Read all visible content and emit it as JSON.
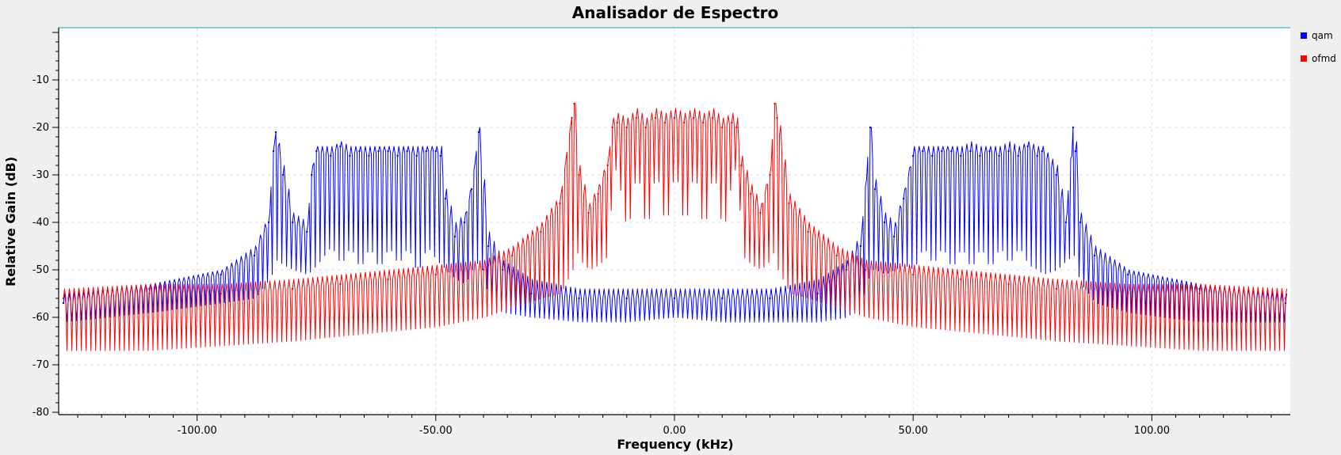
{
  "chart_data": {
    "type": "line",
    "title": "Analisador de Espectro",
    "xlabel": "Frequency (kHz)",
    "ylabel": "Relative Gain (dB)",
    "xlim": [
      -129,
      129
    ],
    "ylim": [
      -80.5,
      1
    ],
    "x_ticks": [
      -100,
      -50,
      0,
      50,
      100
    ],
    "x_tick_labels": [
      "-100.00",
      "-50.00",
      "0.00",
      "50.00",
      "100.00"
    ],
    "y_ticks": [
      -10,
      -20,
      -30,
      -40,
      -50,
      -60,
      -70,
      -80
    ],
    "y_tick_labels": [
      "-10",
      "-20",
      "-30",
      "-40",
      "-50",
      "-60",
      "-70",
      "-80"
    ],
    "grid": true,
    "legend_position": "right",
    "series": [
      {
        "name": "qam",
        "color": "#0000ff",
        "x": [
          -128,
          -110,
          -95,
          -88,
          -85,
          -84,
          -83.5,
          -82,
          -80,
          -77,
          -76,
          -75,
          -72,
          -70,
          -68,
          -66,
          -64,
          -62,
          -60,
          -58,
          -56,
          -54,
          -52,
          -50,
          -49,
          -48,
          -46,
          -44,
          -42.5,
          -41,
          -39,
          -36,
          -30,
          -20,
          -10,
          0,
          10,
          20,
          30,
          36,
          39,
          41,
          42,
          44,
          46,
          48,
          50,
          52,
          54,
          56,
          58,
          60,
          62,
          64,
          66,
          68,
          70,
          72,
          74,
          76,
          77,
          80,
          82,
          83.5,
          84,
          85,
          88,
          95,
          110,
          128
        ],
        "y": [
          -57,
          -54,
          -51,
          -47,
          -40,
          -25,
          -21,
          -30,
          -40,
          -42,
          -30,
          -25,
          -26,
          -24,
          -26,
          -25,
          -26,
          -25,
          -25,
          -26,
          -25,
          -26,
          -25,
          -25,
          -26,
          -35,
          -43,
          -40,
          -33,
          -21,
          -45,
          -50,
          -55,
          -56,
          -56,
          -56,
          -56,
          -56,
          -55,
          -50,
          -45,
          -20,
          -33,
          -40,
          -43,
          -35,
          -26,
          -25,
          -26,
          -25,
          -25,
          -26,
          -25,
          -26,
          -25,
          -26,
          -25,
          -26,
          -24,
          -26,
          -25,
          -30,
          -40,
          -20,
          -25,
          -40,
          -47,
          -51,
          -54,
          -57
        ],
        "upper_y": [
          -55,
          -53,
          -50,
          -45,
          -38,
          -23,
          -21,
          -28,
          -38,
          -40,
          -28,
          -24,
          -24,
          -23,
          -24,
          -24,
          -24,
          -24,
          -24,
          -24,
          -24,
          -24,
          -24,
          -24,
          -24,
          -33,
          -40,
          -38,
          -31,
          -20,
          -42,
          -48,
          -52,
          -54,
          -54,
          -54,
          -54,
          -54,
          -52,
          -48,
          -42,
          -20,
          -31,
          -38,
          -40,
          -33,
          -24,
          -24,
          -24,
          -24,
          -24,
          -24,
          -23,
          -24,
          -24,
          -24,
          -23,
          -24,
          -23,
          -24,
          -24,
          -28,
          -38,
          -20,
          -23,
          -38,
          -45,
          -50,
          -53,
          -55
        ],
        "lower_y": [
          -61,
          -59,
          -57,
          -56,
          -52,
          -50,
          -48,
          -49,
          -50,
          -51,
          -50,
          -49,
          -45,
          -49,
          -45,
          -50,
          -45,
          -50,
          -45,
          -49,
          -45,
          -51,
          -45,
          -48,
          -49,
          -50,
          -52,
          -53,
          -50,
          -48,
          -56,
          -59,
          -60,
          -61,
          -61,
          -60,
          -61,
          -61,
          -61,
          -60,
          -57,
          -50,
          -50,
          -51,
          -50,
          -49,
          -50,
          -45,
          -49,
          -45,
          -50,
          -45,
          -50,
          -45,
          -50,
          -45,
          -49,
          -45,
          -49,
          -50,
          -51,
          -50,
          -48,
          -47,
          -50,
          -53,
          -57,
          -59,
          -61,
          -61
        ]
      },
      {
        "name": "ofmd",
        "color": "#ff0000",
        "x": [
          -128,
          -110,
          -95,
          -80,
          -70,
          -60,
          -50,
          -40,
          -34,
          -28,
          -24,
          -21.5,
          -21,
          -20,
          -18,
          -16,
          -14,
          -13,
          -12,
          -10,
          -8,
          -6,
          -4,
          -2,
          0,
          2,
          4,
          6,
          8,
          10,
          12,
          13,
          14,
          16,
          18,
          20,
          21,
          21.5,
          24,
          28,
          34,
          40,
          50,
          60,
          70,
          80,
          95,
          110,
          128
        ],
        "y": [
          -56,
          -55,
          -55,
          -54,
          -53,
          -52,
          -51,
          -50,
          -47,
          -42,
          -36,
          -18,
          -15,
          -30,
          -38,
          -34,
          -28,
          -20,
          -19,
          -20,
          -18,
          -20,
          -18,
          -19,
          -18,
          -19,
          -18,
          -19,
          -18,
          -20,
          -19,
          -20,
          -28,
          -34,
          -38,
          -30,
          -15,
          -18,
          -36,
          -42,
          -47,
          -50,
          -51,
          -52,
          -53,
          -54,
          -55,
          -55,
          -56
        ],
        "upper_y": [
          -54,
          -53,
          -53,
          -52,
          -51,
          -50,
          -49,
          -48,
          -45,
          -40,
          -34,
          -16,
          -15,
          -28,
          -36,
          -32,
          -26,
          -18,
          -17,
          -18,
          -16,
          -18,
          -16,
          -17,
          -16,
          -17,
          -16,
          -17,
          -16,
          -18,
          -17,
          -18,
          -26,
          -32,
          -36,
          -28,
          -15,
          -16,
          -34,
          -40,
          -45,
          -48,
          -49,
          -50,
          -51,
          -52,
          -53,
          -53,
          -54
        ],
        "lower_y": [
          -67,
          -67,
          -66,
          -65,
          -64,
          -63,
          -62,
          -60,
          -58,
          -56,
          -55,
          -50,
          -45,
          -48,
          -50,
          -49,
          -47,
          -28,
          -30,
          -43,
          -28,
          -43,
          -28,
          -42,
          -28,
          -42,
          -28,
          -43,
          -28,
          -43,
          -30,
          -28,
          -47,
          -49,
          -50,
          -48,
          -45,
          -50,
          -55,
          -56,
          -58,
          -60,
          -62,
          -63,
          -64,
          -65,
          -66,
          -67,
          -67
        ]
      }
    ]
  }
}
